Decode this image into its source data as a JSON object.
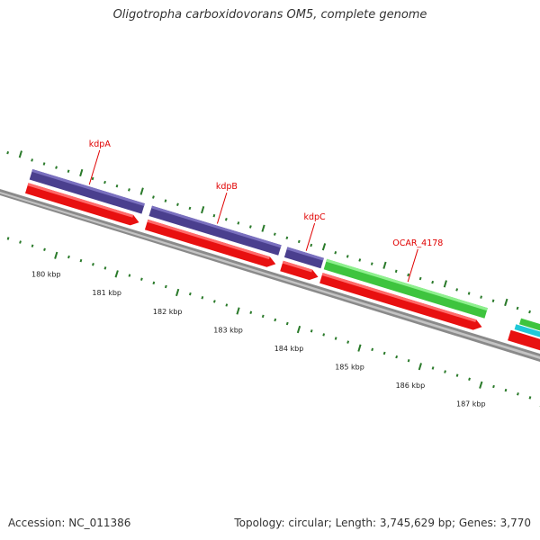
{
  "title": "Oligotropha carboxidovorans OM5, complete genome",
  "footer": {
    "accession": "Accession: NC_011386",
    "summary": "Topology: circular; Length: 3,745,629 bp; Genes: 3,770"
  },
  "colors": {
    "cds": "#e81010",
    "kdp_gene": "#4a3f8e",
    "ocar_gene": "#3ec43e",
    "cyan_gene": "#20c8d8",
    "backbone": "#8a8a8a",
    "ticks": "#2a7a2a",
    "label": "#e00000"
  },
  "genes": [
    {
      "name": "kdpA",
      "start_kbp": 179.25,
      "end_kbp": 181.1,
      "strand": "+"
    },
    {
      "name": "kdpB",
      "start_kbp": 181.22,
      "end_kbp": 183.35,
      "strand": "+"
    },
    {
      "name": "kdpC",
      "start_kbp": 183.45,
      "end_kbp": 184.05,
      "strand": "+"
    },
    {
      "name": "OCAR_4178",
      "start_kbp": 184.1,
      "end_kbp": 186.75,
      "strand": "+"
    }
  ],
  "scale": {
    "unit": "kbp",
    "labels": [
      "180 kbp",
      "181 kbp",
      "182 kbp",
      "183 kbp",
      "184 kbp",
      "185 kbp",
      "186 kbp",
      "187 kbp"
    ]
  }
}
